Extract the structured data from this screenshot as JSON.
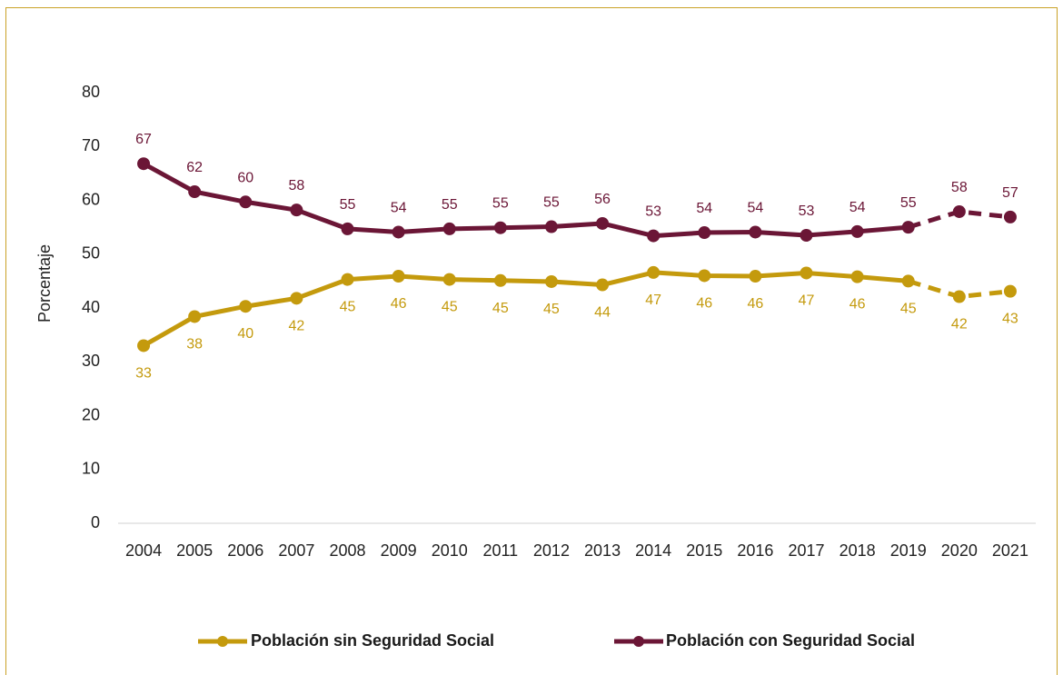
{
  "chart_data": {
    "type": "line",
    "title": "",
    "xlabel": "",
    "ylabel": "Porcentaje",
    "ylim": [
      0,
      80
    ],
    "yticks": [
      0,
      10,
      20,
      30,
      40,
      50,
      60,
      70,
      80
    ],
    "grid": false,
    "legend_position": "bottom",
    "categories": [
      "2004",
      "2005",
      "2006",
      "2007",
      "2008",
      "2009",
      "2010",
      "2011",
      "2012",
      "2013",
      "2014",
      "2015",
      "2016",
      "2017",
      "2018",
      "2019",
      "2020",
      "2021"
    ],
    "series": [
      {
        "name": "Población sin Seguridad Social",
        "color": "#c49a0d",
        "values": [
          33,
          38.4,
          40.3,
          41.8,
          45.3,
          45.9,
          45.3,
          45.1,
          44.9,
          44.3,
          46.6,
          46.0,
          45.9,
          46.5,
          45.8,
          45.0,
          42.1,
          43.1
        ],
        "labels": [
          "33",
          "38",
          "40",
          "42",
          "45",
          "46",
          "45",
          "45",
          "45",
          "44",
          "47",
          "46",
          "46",
          "47",
          "46",
          "45",
          "42",
          "43"
        ],
        "dashed_from_index": 15
      },
      {
        "name": "Población con Seguridad Social",
        "color": "#6b1636",
        "values": [
          66.8,
          61.6,
          59.7,
          58.2,
          54.7,
          54.1,
          54.7,
          54.9,
          55.1,
          55.7,
          53.4,
          54.0,
          54.1,
          53.5,
          54.2,
          55.0,
          57.9,
          56.9
        ],
        "labels": [
          "67",
          "62",
          "60",
          "58",
          "55",
          "54",
          "55",
          "55",
          "55",
          "56",
          "53",
          "54",
          "54",
          "53",
          "54",
          "55",
          "58",
          "57"
        ],
        "dashed_from_index": 15
      }
    ]
  }
}
